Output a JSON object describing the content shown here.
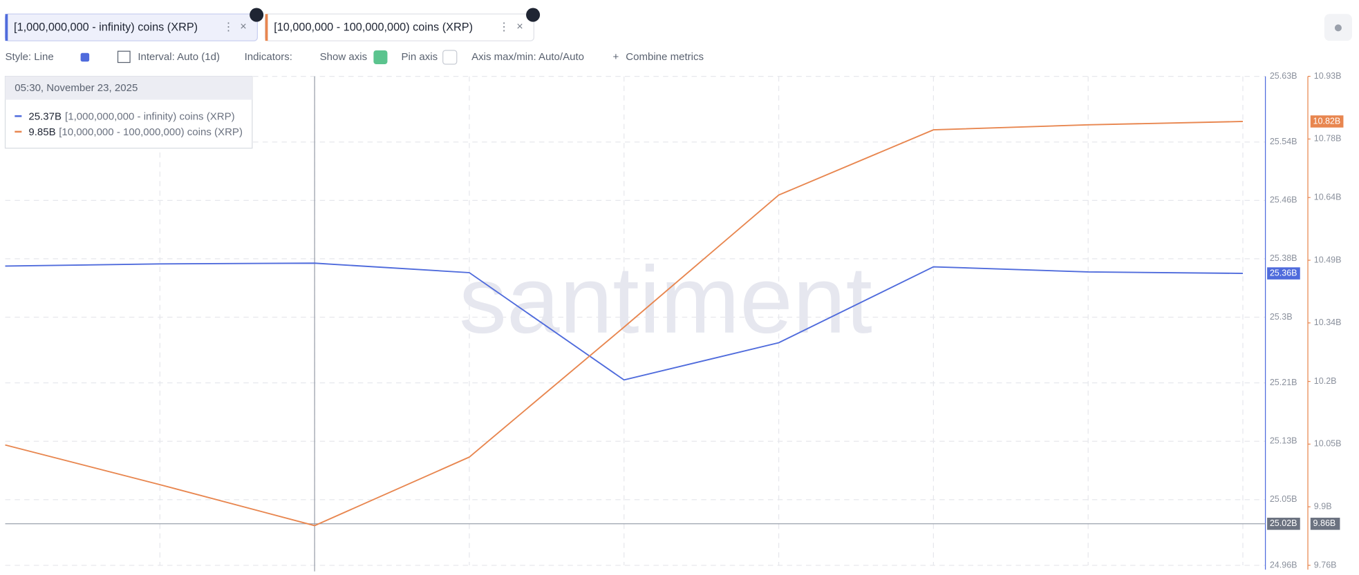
{
  "tabs": [
    {
      "series": 0
    },
    {
      "series": 1
    }
  ],
  "toolbar": {
    "style": "Style: Line",
    "interval": "Interval: Auto (1d)",
    "indicators": "Indicators:",
    "show_axis": "Show axis",
    "pin_axis": "Pin axis",
    "axis_maxmin": "Axis max/min: Auto/Auto",
    "combine": "Combine metrics"
  },
  "tooltip": {
    "date": "05:30, November 23, 2025",
    "values": [
      "25.37B",
      "9.85B"
    ]
  },
  "watermark": "santiment",
  "crosshair": {
    "left": "25.02B",
    "right": "9.86B"
  },
  "chart_data": {
    "type": "line",
    "categories": [
      null,
      null,
      null,
      null,
      null,
      null,
      null,
      null,
      null
    ],
    "series": [
      {
        "name": "[1,000,000,000 - infinity) coins (XRP)",
        "color": "#4f6bdc",
        "axis": "y",
        "end_label": "25.36B",
        "values": [
          25.37,
          25.373,
          25.374,
          25.361,
          25.214,
          25.265,
          25.369,
          25.362,
          25.36
        ]
      },
      {
        "name": "[10,000,000 - 100,000,000) coins (XRP)",
        "color": "#e8864f",
        "axis": "y2",
        "end_label": "10.82B",
        "values": [
          10.048,
          9.953,
          9.855,
          10.019,
          10.33,
          10.646,
          10.802,
          10.814,
          10.822
        ]
      }
    ],
    "ylim": [
      24.96,
      25.63
    ],
    "yticks": [
      {
        "value": 24.96,
        "label": "24.96B"
      },
      {
        "value": 25.05,
        "label": "25.05B"
      },
      {
        "value": 25.13,
        "label": "25.13B"
      },
      {
        "value": 25.21,
        "label": "25.21B"
      },
      {
        "value": 25.3,
        "label": "25.3B"
      },
      {
        "value": 25.38,
        "label": "25.38B"
      },
      {
        "value": 25.46,
        "label": "25.46B"
      },
      {
        "value": 25.54,
        "label": "25.54B"
      },
      {
        "value": 25.63,
        "label": "25.63B"
      }
    ],
    "y2lim": [
      9.76,
      10.93
    ],
    "y2ticks": [
      {
        "value": 9.76,
        "label": "9.76B"
      },
      {
        "value": 9.9,
        "label": "9.9B"
      },
      {
        "value": 10.05,
        "label": "10.05B"
      },
      {
        "value": 10.2,
        "label": "10.2B"
      },
      {
        "value": 10.34,
        "label": "10.34B"
      },
      {
        "value": 10.49,
        "label": "10.49B"
      },
      {
        "value": 10.64,
        "label": "10.64B"
      },
      {
        "value": 10.78,
        "label": "10.78B"
      },
      {
        "value": 10.93,
        "label": "10.93B"
      }
    ],
    "grid": true
  }
}
